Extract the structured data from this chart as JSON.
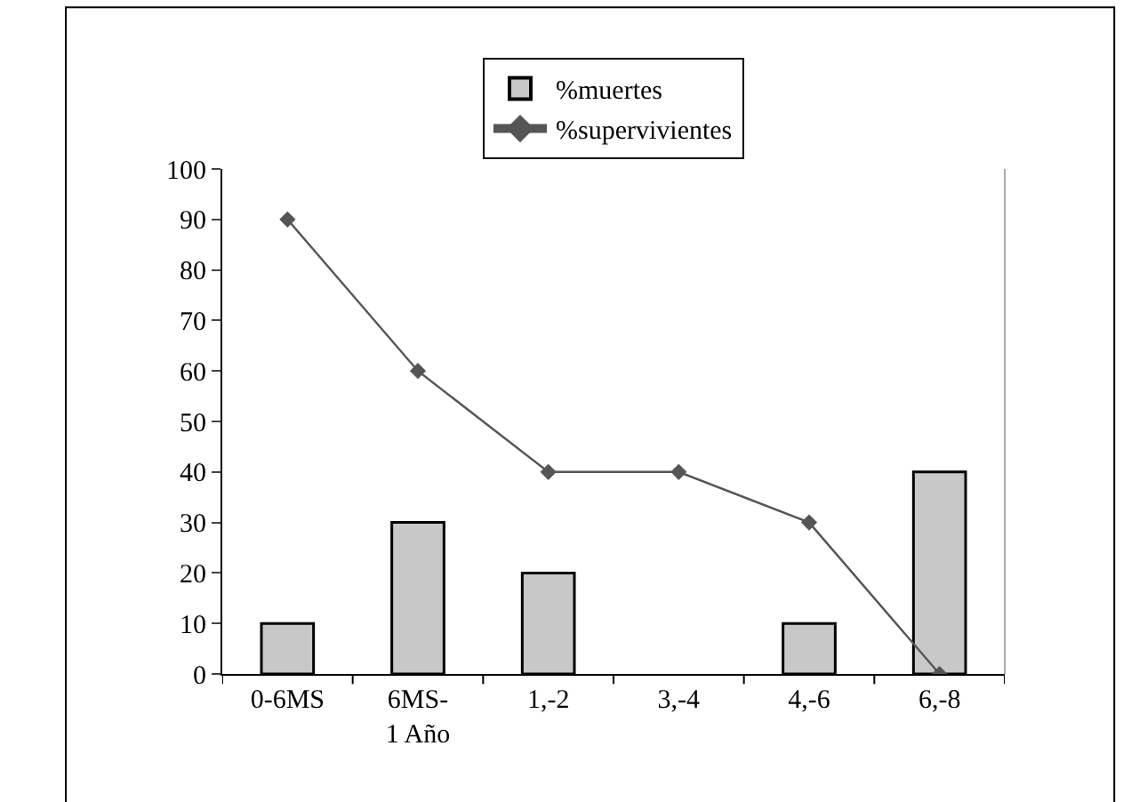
{
  "chart_data": {
    "type": "bar",
    "categories": [
      "0-6MS",
      "6MS-\n1 Año",
      "1,-2",
      "3,-4",
      "4,-6",
      "6,-8"
    ],
    "series": [
      {
        "name": "%muertes",
        "color": "#c8c8c8",
        "values": [
          10,
          30,
          20,
          0,
          10,
          40
        ]
      },
      {
        "name": "%supervivientes",
        "type": "line",
        "color": "#555555",
        "marker": "diamond",
        "values": [
          90,
          60,
          40,
          40,
          30,
          0
        ]
      }
    ],
    "ylim": [
      0,
      100
    ],
    "yticks": [
      0,
      10,
      20,
      30,
      40,
      50,
      60,
      70,
      80,
      90,
      100
    ],
    "legend": "top"
  }
}
